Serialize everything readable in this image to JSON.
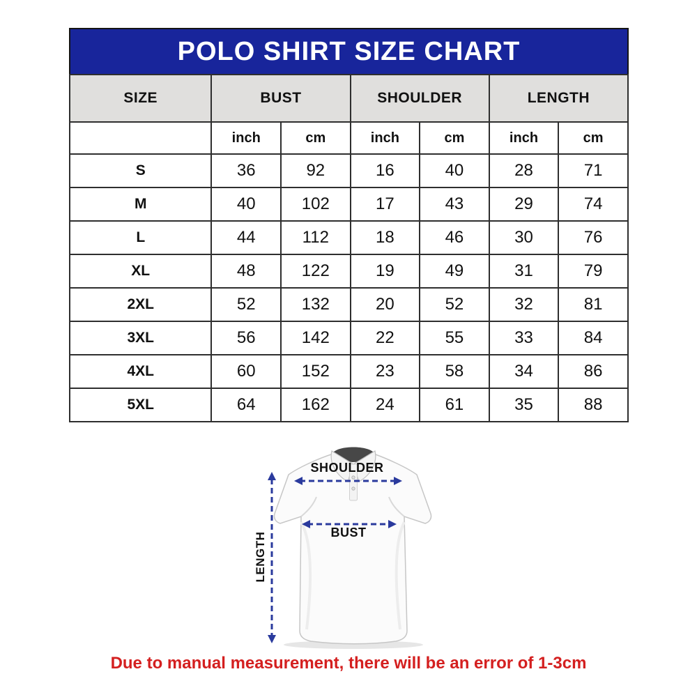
{
  "title": "POLO SHIRT SIZE CHART",
  "table": {
    "column_groups": [
      "SIZE",
      "BUST",
      "SHOULDER",
      "LENGTH"
    ],
    "unit_headers": [
      "inch",
      "cm",
      "inch",
      "cm",
      "inch",
      "cm"
    ],
    "rows": [
      {
        "size": "S",
        "values": [
          "36",
          "92",
          "16",
          "40",
          "28",
          "71"
        ]
      },
      {
        "size": "M",
        "values": [
          "40",
          "102",
          "17",
          "43",
          "29",
          "74"
        ]
      },
      {
        "size": "L",
        "values": [
          "44",
          "112",
          "18",
          "46",
          "30",
          "76"
        ]
      },
      {
        "size": "XL",
        "values": [
          "48",
          "122",
          "19",
          "49",
          "31",
          "79"
        ]
      },
      {
        "size": "2XL",
        "values": [
          "52",
          "132",
          "20",
          "52",
          "32",
          "81"
        ]
      },
      {
        "size": "3XL",
        "values": [
          "56",
          "142",
          "22",
          "55",
          "33",
          "84"
        ]
      },
      {
        "size": "4XL",
        "values": [
          "60",
          "152",
          "23",
          "58",
          "34",
          "86"
        ]
      },
      {
        "size": "5XL",
        "values": [
          "64",
          "162",
          "24",
          "61",
          "35",
          "88"
        ]
      }
    ]
  },
  "diagram": {
    "shoulder_label": "SHOULDER",
    "bust_label": "BUST",
    "length_label": "LENGTH"
  },
  "note": {
    "text": "Due to manual measurement, there will be an error of 1-3cm"
  },
  "colors": {
    "title_bg": "#18259b",
    "title_text": "#ffffff",
    "header_bg": "#e0dfdd",
    "arrow_blue": "#2a3a9d",
    "note_red": "#d41f1f"
  },
  "chart_data": {
    "type": "table",
    "title": "POLO SHIRT SIZE CHART",
    "columns": [
      "SIZE",
      "BUST inch",
      "BUST cm",
      "SHOULDER inch",
      "SHOULDER cm",
      "LENGTH inch",
      "LENGTH cm"
    ],
    "rows": [
      [
        "S",
        36,
        92,
        16,
        40,
        28,
        71
      ],
      [
        "M",
        40,
        102,
        17,
        43,
        29,
        74
      ],
      [
        "L",
        44,
        112,
        18,
        46,
        30,
        76
      ],
      [
        "XL",
        48,
        122,
        19,
        49,
        31,
        79
      ],
      [
        "2XL",
        52,
        132,
        20,
        52,
        32,
        81
      ],
      [
        "3XL",
        56,
        142,
        22,
        55,
        33,
        84
      ],
      [
        "4XL",
        60,
        152,
        23,
        58,
        34,
        86
      ],
      [
        "5XL",
        64,
        162,
        24,
        61,
        35,
        88
      ]
    ],
    "note": "Due to manual measurement, there will be an error of 1-3cm"
  }
}
